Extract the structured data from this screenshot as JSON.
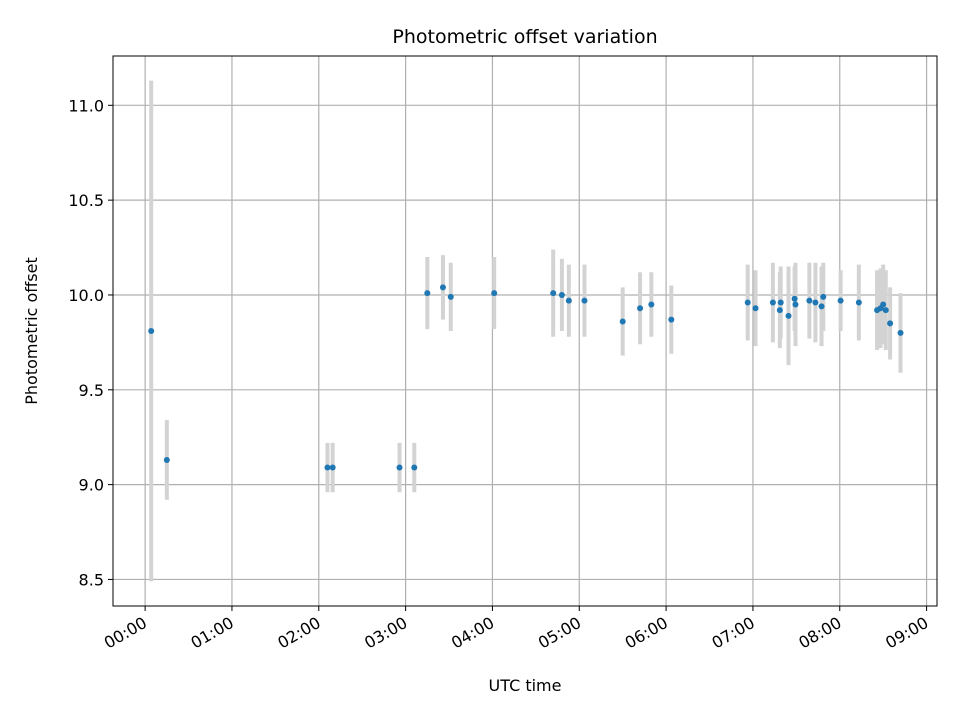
{
  "chart_data": {
    "type": "scatter",
    "title": "Photometric offset variation",
    "xlabel": "UTC time",
    "ylabel": "Photometric offset",
    "xlim": [
      -0.37,
      9.12
    ],
    "ylim": [
      8.36,
      11.26
    ],
    "grid": true,
    "x_ticks": [
      {
        "value": 0,
        "label": "00:00"
      },
      {
        "value": 1,
        "label": "01:00"
      },
      {
        "value": 2,
        "label": "02:00"
      },
      {
        "value": 3,
        "label": "03:00"
      },
      {
        "value": 4,
        "label": "04:00"
      },
      {
        "value": 5,
        "label": "05:00"
      },
      {
        "value": 6,
        "label": "06:00"
      },
      {
        "value": 7,
        "label": "07:00"
      },
      {
        "value": 8,
        "label": "08:00"
      },
      {
        "value": 9,
        "label": "09:00"
      }
    ],
    "y_ticks": [
      {
        "value": 8.5,
        "label": "8.5"
      },
      {
        "value": 9.0,
        "label": "9.0"
      },
      {
        "value": 9.5,
        "label": "9.5"
      },
      {
        "value": 10.0,
        "label": "10.0"
      },
      {
        "value": 10.5,
        "label": "10.5"
      },
      {
        "value": 11.0,
        "label": "11.0"
      }
    ],
    "colors": {
      "point": "#1f77b4",
      "errorbar": "#d3d3d3",
      "grid": "#b0b0b0",
      "axes": "#000000"
    },
    "points": [
      {
        "t": 0.07,
        "y": 9.81,
        "err": 1.32
      },
      {
        "t": 0.25,
        "y": 9.13,
        "err": 0.21
      },
      {
        "t": 2.1,
        "y": 9.09,
        "err": 0.13
      },
      {
        "t": 2.16,
        "y": 9.09,
        "err": 0.13
      },
      {
        "t": 2.93,
        "y": 9.09,
        "err": 0.13
      },
      {
        "t": 3.1,
        "y": 9.09,
        "err": 0.13
      },
      {
        "t": 3.25,
        "y": 10.01,
        "err": 0.19
      },
      {
        "t": 3.43,
        "y": 10.04,
        "err": 0.17
      },
      {
        "t": 3.52,
        "y": 9.99,
        "err": 0.18
      },
      {
        "t": 4.02,
        "y": 10.01,
        "err": 0.19
      },
      {
        "t": 4.7,
        "y": 10.01,
        "err": 0.23
      },
      {
        "t": 4.8,
        "y": 10.0,
        "err": 0.19
      },
      {
        "t": 4.88,
        "y": 9.97,
        "err": 0.19
      },
      {
        "t": 5.06,
        "y": 9.97,
        "err": 0.19
      },
      {
        "t": 5.5,
        "y": 9.86,
        "err": 0.18
      },
      {
        "t": 5.7,
        "y": 9.93,
        "err": 0.19
      },
      {
        "t": 5.83,
        "y": 9.95,
        "err": 0.17
      },
      {
        "t": 6.06,
        "y": 9.87,
        "err": 0.18
      },
      {
        "t": 6.94,
        "y": 9.96,
        "err": 0.2
      },
      {
        "t": 7.03,
        "y": 9.93,
        "err": 0.2
      },
      {
        "t": 7.23,
        "y": 9.96,
        "err": 0.21
      },
      {
        "t": 7.31,
        "y": 9.92,
        "err": 0.2
      },
      {
        "t": 7.32,
        "y": 9.96,
        "err": 0.19
      },
      {
        "t": 7.41,
        "y": 9.89,
        "err": 0.26
      },
      {
        "t": 7.48,
        "y": 9.98,
        "err": 0.17
      },
      {
        "t": 7.49,
        "y": 9.95,
        "err": 0.22
      },
      {
        "t": 7.65,
        "y": 9.97,
        "err": 0.2
      },
      {
        "t": 7.72,
        "y": 9.96,
        "err": 0.21
      },
      {
        "t": 7.79,
        "y": 9.94,
        "err": 0.21
      },
      {
        "t": 7.81,
        "y": 9.99,
        "err": 0.18
      },
      {
        "t": 8.01,
        "y": 9.97,
        "err": 0.16
      },
      {
        "t": 8.22,
        "y": 9.96,
        "err": 0.2
      },
      {
        "t": 8.43,
        "y": 9.92,
        "err": 0.21
      },
      {
        "t": 8.47,
        "y": 9.93,
        "err": 0.21
      },
      {
        "t": 8.5,
        "y": 9.95,
        "err": 0.21
      },
      {
        "t": 8.53,
        "y": 9.92,
        "err": 0.21
      },
      {
        "t": 8.58,
        "y": 9.85,
        "err": 0.19
      },
      {
        "t": 8.7,
        "y": 9.8,
        "err": 0.21
      }
    ]
  }
}
